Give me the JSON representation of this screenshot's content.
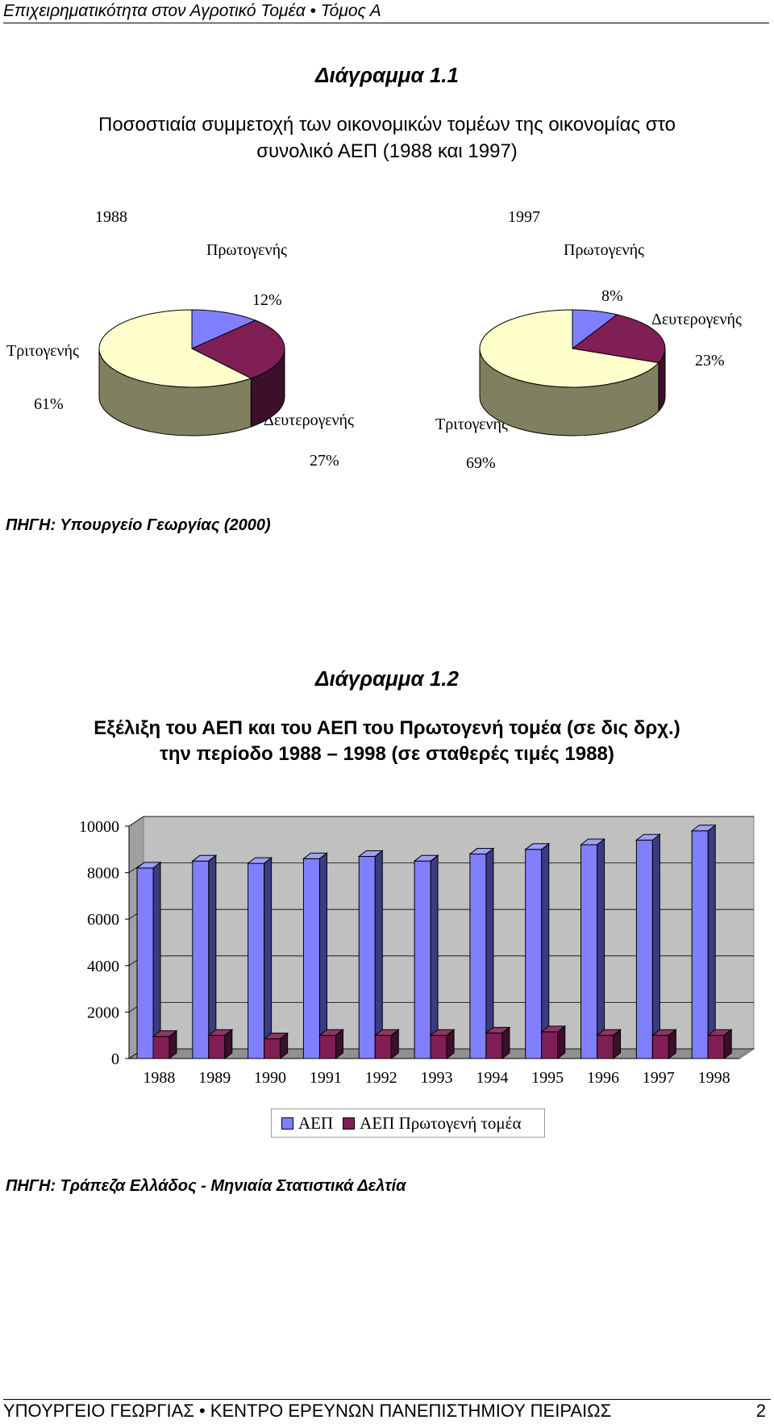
{
  "header": {
    "text": "Επιχειρηματικότητα στον Αγροτικό Τομέα • Τόμος Α"
  },
  "footer": {
    "text": "ΥΠΟΥΡΓΕΙΟ ΓΕΩΡΓΙΑΣ • ΚΕΝΤΡΟ ΕΡΕΥΝΩΝ ΠΑΝΕΠΙΣΤΗΜΙΟΥ ΠΕΙΡΑΙΩΣ",
    "page": "2"
  },
  "diagram1": {
    "heading": "Διάγραμμα 1.1",
    "title_line1": "Ποσοστιαία συμμετοχή των οικονομικών τομέων της οικονομίας στο",
    "title_line2": "συνολικό ΑΕΠ (1988 και 1997)",
    "source": "ΠΗΓΗ: Υπουργείο Γεωργίας (2000)",
    "pie1988": {
      "year": "1988",
      "primary_label": "Πρωτογενής",
      "primary_pct": "12%",
      "secondary_label": "Δευτερογενής",
      "secondary_pct": "27%",
      "tertiary_label": "Τριτογενής",
      "tertiary_pct": "61%"
    },
    "pie1997": {
      "year": "1997",
      "primary_label": "Πρωτογενής",
      "primary_pct": "8%",
      "secondary_label": "Δευτερογενής",
      "secondary_pct": "23%",
      "tertiary_label": "Τριτογενής",
      "tertiary_pct": "69%"
    }
  },
  "diagram2": {
    "heading": "Διάγραμμα 1.2",
    "title_line1": "Εξέλιξη του ΑΕΠ και του ΑΕΠ του Πρωτογενή τομέα (σε δις δρχ.)",
    "title_line2": "την περίοδο 1988 – 1998 (σε σταθερές τιμές 1988)",
    "source": "ΠΗΓΗ: Τράπεζα Ελλάδος - Μηνιαία Στατιστικά Δελτία",
    "legend": {
      "series1": "ΑΕΠ",
      "series2": "ΑΕΠ Πρωτογενή τομέα"
    }
  },
  "chart_data": [
    {
      "type": "pie",
      "title": "1988",
      "categories": [
        "Πρωτογενής",
        "Δευτερογενής",
        "Τριτογενής"
      ],
      "values": [
        12,
        27,
        61
      ],
      "colors": [
        "#8080ff",
        "#7f1f55",
        "#ffffcc"
      ]
    },
    {
      "type": "pie",
      "title": "1997",
      "categories": [
        "Πρωτογενής",
        "Δευτερογενής",
        "Τριτογενής"
      ],
      "values": [
        8,
        23,
        69
      ],
      "colors": [
        "#8080ff",
        "#7f1f55",
        "#ffffcc"
      ]
    },
    {
      "type": "bar",
      "categories": [
        "1988",
        "1989",
        "1990",
        "1991",
        "1992",
        "1993",
        "1994",
        "1995",
        "1996",
        "1997",
        "1998"
      ],
      "series": [
        {
          "name": "ΑΕΠ",
          "values": [
            8200,
            8500,
            8400,
            8600,
            8700,
            8500,
            8800,
            9000,
            9200,
            9400,
            9800
          ],
          "color": "#8080ff"
        },
        {
          "name": "ΑΕΠ Πρωτογενή τομέα",
          "values": [
            950,
            1000,
            850,
            1000,
            1000,
            1000,
            1100,
            1150,
            1000,
            1000,
            1000
          ],
          "color": "#7f1f55"
        }
      ],
      "ylim": [
        0,
        10000
      ],
      "yticks": [
        "0",
        "2000",
        "4000",
        "6000",
        "8000",
        "10000"
      ],
      "grid": true,
      "legend": "bottom"
    }
  ]
}
